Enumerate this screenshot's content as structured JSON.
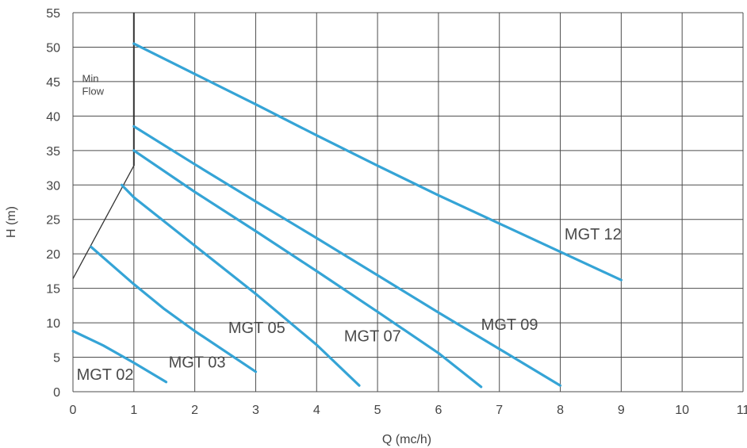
{
  "chart_data": {
    "type": "line",
    "title": "",
    "xlabel": "Q (mc/h)",
    "ylabel": "H (m)",
    "xlim": [
      0,
      11
    ],
    "ylim": [
      0,
      55
    ],
    "xticks": [
      0,
      1,
      2,
      3,
      4,
      5,
      6,
      7,
      8,
      9,
      10,
      11
    ],
    "yticks": [
      0,
      5,
      10,
      15,
      20,
      25,
      30,
      35,
      40,
      45,
      50,
      55
    ],
    "grid": true,
    "series_color": "#35a4d6",
    "min_flow_color": "#333333",
    "series": [
      {
        "name": "MGT 02",
        "points": [
          [
            0,
            8.8
          ],
          [
            0.5,
            6.7
          ],
          [
            1.0,
            4.2
          ],
          [
            1.53,
            1.4
          ]
        ]
      },
      {
        "name": "MGT 03",
        "points": [
          [
            0.3,
            21.0
          ],
          [
            1.0,
            15.6
          ],
          [
            1.5,
            12.0
          ],
          [
            2.0,
            8.8
          ],
          [
            3.0,
            2.9
          ]
        ]
      },
      {
        "name": "MGT 05",
        "points": [
          [
            0.8,
            30.0
          ],
          [
            1.0,
            28.2
          ],
          [
            2.0,
            21.2
          ],
          [
            3.0,
            14.2
          ],
          [
            4.0,
            6.8
          ],
          [
            4.7,
            0.9
          ]
        ]
      },
      {
        "name": "MGT 07",
        "points": [
          [
            1.0,
            35.0
          ],
          [
            2.0,
            29.0
          ],
          [
            3.0,
            23.3
          ],
          [
            4.0,
            17.5
          ],
          [
            5.0,
            11.6
          ],
          [
            6.0,
            5.6
          ],
          [
            6.7,
            0.7
          ]
        ]
      },
      {
        "name": "MGT 09",
        "points": [
          [
            1.0,
            38.5
          ],
          [
            2.0,
            33.0
          ],
          [
            3.0,
            27.6
          ],
          [
            4.0,
            22.3
          ],
          [
            5.0,
            16.9
          ],
          [
            6.0,
            11.5
          ],
          [
            7.0,
            6.2
          ],
          [
            8.0,
            0.9
          ]
        ]
      },
      {
        "name": "MGT 12",
        "points": [
          [
            1.0,
            50.5
          ],
          [
            2.0,
            46.1
          ],
          [
            3.0,
            41.7
          ],
          [
            4.0,
            37.2
          ],
          [
            5.0,
            32.8
          ],
          [
            6.0,
            28.5
          ],
          [
            7.0,
            24.4
          ],
          [
            8.0,
            20.3
          ],
          [
            9.0,
            16.2
          ]
        ]
      }
    ],
    "labels": [
      {
        "text": "MGT 02",
        "x": 0.06,
        "y": 1.7
      },
      {
        "text": "MGT 03",
        "x": 1.57,
        "y": 3.5
      },
      {
        "text": "MGT 05",
        "x": 2.55,
        "y": 8.5
      },
      {
        "text": "MGT 07",
        "x": 4.45,
        "y": 7.3
      },
      {
        "text": "MGT 09",
        "x": 6.7,
        "y": 9.0
      },
      {
        "text": "MGT 12",
        "x": 8.07,
        "y": 22.1
      }
    ],
    "min_flow": {
      "label_line1": "Min",
      "label_line2": "Flow",
      "label_x": 0.15,
      "label_y": 43.3,
      "curve": [
        [
          0,
          16.4
        ],
        [
          1.0,
          32.8
        ]
      ],
      "vertical_x": 1.0,
      "vertical_range": [
        32.8,
        55
      ]
    }
  }
}
